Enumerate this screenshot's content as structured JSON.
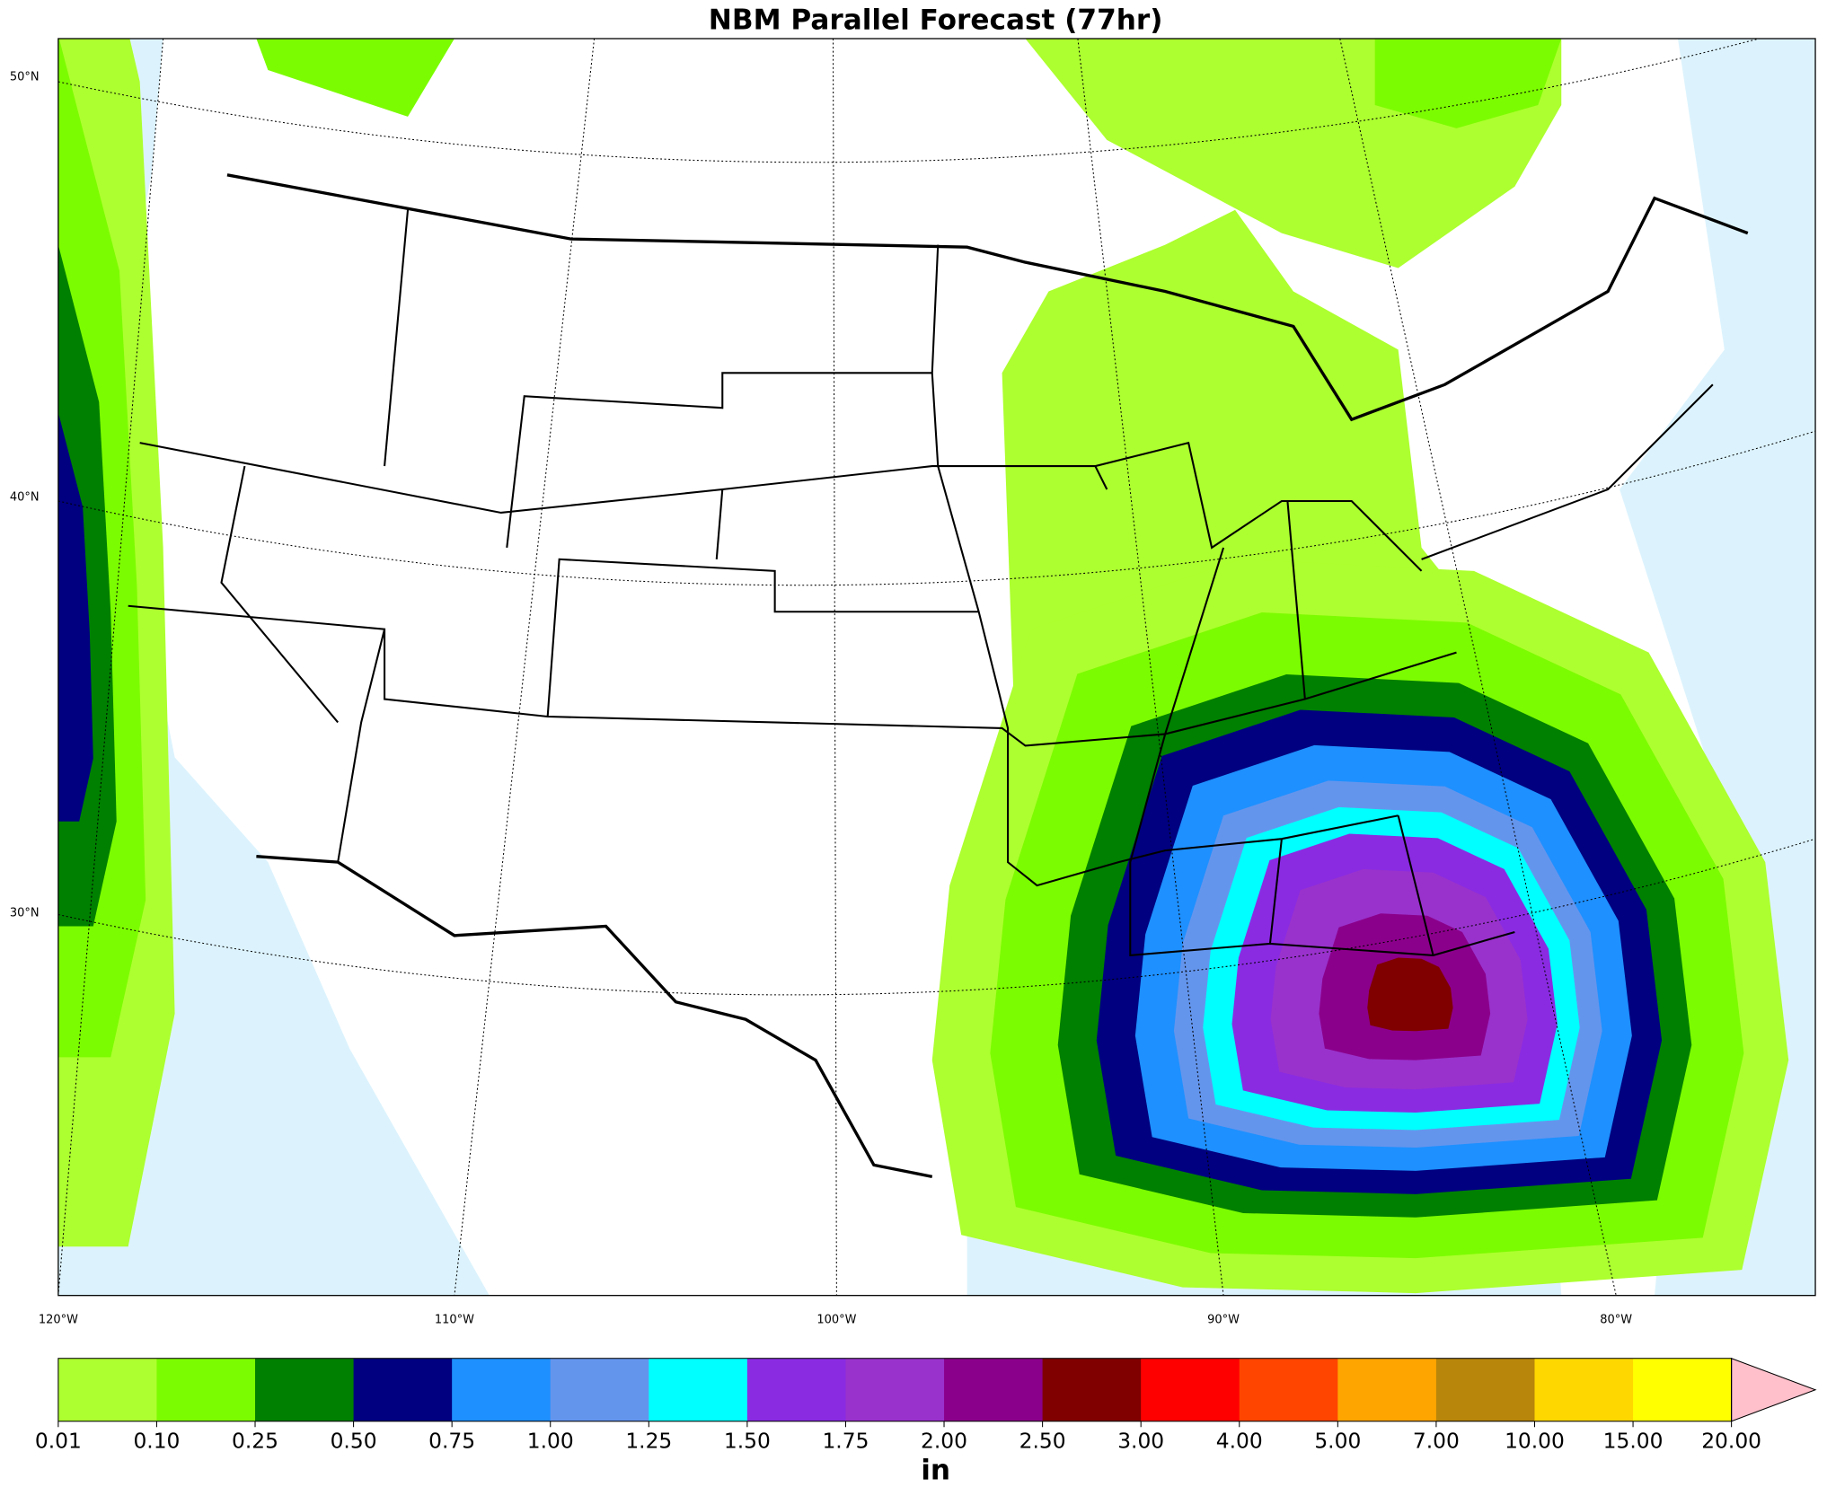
{
  "title": "NBM Parallel Forecast (77hr)",
  "map": {
    "lat_labels": [
      "50°N",
      "40°N",
      "30°N"
    ],
    "lon_labels": [
      "120°W",
      "110°W",
      "100°W",
      "90°W",
      "80°W"
    ]
  },
  "colorbar": {
    "label": "in",
    "levels": [
      {
        "value": 0.01,
        "label": "0.01"
      },
      {
        "value": 0.1,
        "label": "0.10"
      },
      {
        "value": 0.25,
        "label": "0.25"
      },
      {
        "value": 0.5,
        "label": "0.50"
      },
      {
        "value": 0.75,
        "label": "0.75"
      },
      {
        "value": 1,
        "label": "1.00"
      },
      {
        "value": 1.25,
        "label": "1.25"
      },
      {
        "value": 1.5,
        "label": "1.50"
      },
      {
        "value": 1.75,
        "label": "1.75"
      },
      {
        "value": 2,
        "label": "2.00"
      },
      {
        "value": 2.5,
        "label": "2.50"
      },
      {
        "value": 3,
        "label": "3.00"
      },
      {
        "value": 4,
        "label": "4.00"
      },
      {
        "value": 5,
        "label": "5.00"
      },
      {
        "value": 7,
        "label": "7.00"
      },
      {
        "value": 10,
        "label": "10.00"
      },
      {
        "value": 15,
        "label": "15.00"
      },
      {
        "value": 20,
        "label": "20.00"
      }
    ],
    "colors": [
      "#adff2f",
      "#7cfc00",
      "#008000",
      "#000080",
      "#1e90ff",
      "#6495ed",
      "#00ffff",
      "#8a2be2",
      "#9932cc",
      "#8b008b",
      "#800000",
      "#ff0000",
      "#ff4500",
      "#ffa500",
      "#b8860b",
      "#ffd700",
      "#ffff00"
    ],
    "extend_color": "#ffc0cb"
  }
}
